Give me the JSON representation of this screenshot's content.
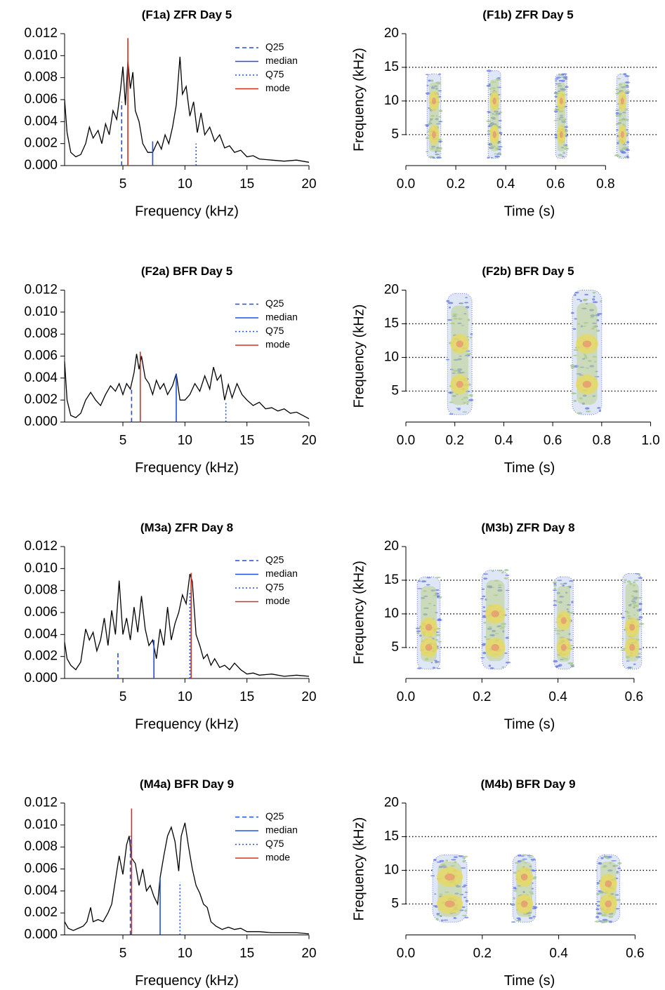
{
  "chart_data": [
    {
      "type": "line",
      "title": "(F1a) ZFR Day 5",
      "x_label": "Frequency (kHz)",
      "color": "#000000",
      "x": [
        0.3,
        0.5,
        0.8,
        1.2,
        1.6,
        2.0,
        2.3,
        2.6,
        3.0,
        3.3,
        3.6,
        3.9,
        4.2,
        4.5,
        4.8,
        5.0,
        5.2,
        5.4,
        5.6,
        5.8,
        6.0,
        6.3,
        6.6,
        7.0,
        7.4,
        7.8,
        8.1,
        8.4,
        8.7,
        9.0,
        9.3,
        9.6,
        9.8,
        10.1,
        10.4,
        10.7,
        11.0,
        11.3,
        11.6,
        12.0,
        12.4,
        12.8,
        13.2,
        13.6,
        14.0,
        14.5,
        15.0,
        15.5,
        16.0,
        17.0,
        18.0,
        19.0,
        20.0
      ],
      "values": [
        0.006,
        0.003,
        0.0012,
        0.0008,
        0.001,
        0.002,
        0.0035,
        0.0025,
        0.0032,
        0.002,
        0.0038,
        0.0028,
        0.005,
        0.0042,
        0.0068,
        0.009,
        0.0055,
        0.0095,
        0.007,
        0.0085,
        0.005,
        0.004,
        0.002,
        0.0012,
        0.0012,
        0.0022,
        0.0015,
        0.0028,
        0.002,
        0.0035,
        0.0055,
        0.0099,
        0.0065,
        0.0072,
        0.0045,
        0.0058,
        0.003,
        0.0048,
        0.0028,
        0.0035,
        0.0022,
        0.0028,
        0.0016,
        0.0018,
        0.0012,
        0.0014,
        0.0008,
        0.0009,
        0.0006,
        0.0005,
        0.0004,
        0.0005,
        0.0003
      ],
      "markers": [
        {
          "name": "Q25",
          "color": "#1f4fe0",
          "dash": "dashed",
          "x": 4.9,
          "y": 0.0058
        },
        {
          "name": "median",
          "color": "#1f4fe0",
          "dash": "solid",
          "x": 7.4,
          "y": 0.0022
        },
        {
          "name": "Q75",
          "color": "#1f4fe0",
          "dash": "dotted",
          "x": 10.9,
          "y": 0.002
        },
        {
          "name": "mode",
          "color": "#d03020",
          "dash": "solid",
          "x": 5.4,
          "y": 0.0116
        }
      ],
      "xlim": [
        0.3,
        20
      ],
      "xticks": [
        5,
        10,
        15,
        20
      ],
      "ylim": [
        0,
        0.012
      ],
      "yticks": [
        {
          "value": 0,
          "label": "0.000"
        },
        {
          "value": 0.002,
          "label": "0.002"
        },
        {
          "value": 0.004,
          "label": "0.004"
        },
        {
          "value": 0.006,
          "label": "0.006"
        },
        {
          "value": 0.008,
          "label": "0.008"
        },
        {
          "value": 0.01,
          "label": "0.010"
        },
        {
          "value": 0.012,
          "label": "0.012"
        }
      ]
    },
    {
      "type": "spectrogram",
      "title": "(F1b) ZFR Day 5",
      "x_label": "Time (s)",
      "y_label": "Frequency (kHz)",
      "grid": true,
      "syllables": [
        {
          "start": 0.085,
          "end": 0.14,
          "low": 1.5,
          "high": 14,
          "peaks": [
            5,
            10
          ]
        },
        {
          "start": 0.33,
          "end": 0.38,
          "low": 1.5,
          "high": 14.5,
          "peaks": [
            5,
            10
          ]
        },
        {
          "start": 0.6,
          "end": 0.645,
          "low": 1.5,
          "high": 14,
          "peaks": [
            5,
            10
          ]
        },
        {
          "start": 0.845,
          "end": 0.89,
          "low": 1.5,
          "high": 14,
          "peaks": [
            5,
            10
          ]
        }
      ],
      "xlim": [
        0,
        1.01
      ],
      "xticks": [
        {
          "value": 0,
          "label": "0.0"
        },
        0.2,
        0.4,
        0.6,
        0.8
      ],
      "ylim": [
        0.4,
        20
      ],
      "yticks": [
        5,
        10,
        15,
        20
      ]
    },
    {
      "type": "line",
      "title": "(F2a) BFR Day 5",
      "x_label": "Frequency (kHz)",
      "color": "#000000",
      "x": [
        0.3,
        0.5,
        0.8,
        1.2,
        1.6,
        2.0,
        2.4,
        2.8,
        3.2,
        3.6,
        4.0,
        4.4,
        4.7,
        5.0,
        5.3,
        5.6,
        5.9,
        6.1,
        6.3,
        6.5,
        6.8,
        7.1,
        7.4,
        7.7,
        8.0,
        8.3,
        8.6,
        9.0,
        9.3,
        9.6,
        10.0,
        10.4,
        10.8,
        11.2,
        11.6,
        12.0,
        12.3,
        12.6,
        12.9,
        13.2,
        13.5,
        13.8,
        14.2,
        14.6,
        15.0,
        15.5,
        16.0,
        16.5,
        17.0,
        17.5,
        18.0,
        18.5,
        19.0,
        19.5,
        20.0
      ],
      "values": [
        0.0055,
        0.002,
        0.0006,
        0.0004,
        0.0008,
        0.002,
        0.0027,
        0.002,
        0.0015,
        0.0025,
        0.0033,
        0.0028,
        0.0035,
        0.0025,
        0.0035,
        0.003,
        0.0045,
        0.0062,
        0.0048,
        0.006,
        0.004,
        0.0035,
        0.0025,
        0.0038,
        0.003,
        0.0035,
        0.0025,
        0.0033,
        0.0044,
        0.002,
        0.002,
        0.0025,
        0.0035,
        0.0028,
        0.0042,
        0.003,
        0.005,
        0.0038,
        0.0043,
        0.002,
        0.0034,
        0.0022,
        0.0035,
        0.0025,
        0.002,
        0.0015,
        0.0018,
        0.0012,
        0.0013,
        0.001,
        0.0012,
        0.0008,
        0.0009,
        0.0006,
        0.0003
      ],
      "markers": [
        {
          "name": "Q25",
          "color": "#1f4fe0",
          "dash": "dashed",
          "x": 5.7,
          "y": 0.003
        },
        {
          "name": "median",
          "color": "#1f4fe0",
          "dash": "solid",
          "x": 9.3,
          "y": 0.0044
        },
        {
          "name": "Q75",
          "color": "#1f4fe0",
          "dash": "dotted",
          "x": 13.3,
          "y": 0.0018
        },
        {
          "name": "mode",
          "color": "#d03020",
          "dash": "solid",
          "x": 6.4,
          "y": 0.0064
        }
      ],
      "xlim": [
        0.3,
        20
      ],
      "xticks": [
        5,
        10,
        15,
        20
      ],
      "ylim": [
        0,
        0.012
      ],
      "yticks": [
        {
          "value": 0,
          "label": "0.000"
        },
        {
          "value": 0.002,
          "label": "0.002"
        },
        {
          "value": 0.004,
          "label": "0.004"
        },
        {
          "value": 0.006,
          "label": "0.006"
        },
        {
          "value": 0.008,
          "label": "0.008"
        },
        {
          "value": 0.01,
          "label": "0.010"
        },
        {
          "value": 0.012,
          "label": "0.012"
        }
      ]
    },
    {
      "type": "spectrogram",
      "title": "(F2b) BFR Day 5",
      "x_label": "Time (s)",
      "y_label": "Frequency (kHz)",
      "grid": true,
      "syllables": [
        {
          "start": 0.17,
          "end": 0.27,
          "low": 1.5,
          "high": 19.5,
          "peaks": [
            6,
            12
          ]
        },
        {
          "start": 0.68,
          "end": 0.8,
          "low": 1.5,
          "high": 20,
          "peaks": [
            6,
            12
          ]
        }
      ],
      "xlim": [
        0,
        1.03
      ],
      "xticks": [
        {
          "value": 0,
          "label": "0.0"
        },
        0.2,
        0.4,
        0.6,
        0.8,
        {
          "value": 1,
          "label": "1.0"
        }
      ],
      "ylim": [
        0.4,
        20
      ],
      "yticks": [
        5,
        10,
        15,
        20
      ]
    },
    {
      "type": "line",
      "title": "(M3a) ZFR Day 8",
      "x_label": "Frequency (kHz)",
      "color": "#000000",
      "x": [
        0.3,
        0.5,
        0.8,
        1.2,
        1.6,
        2.0,
        2.3,
        2.6,
        2.9,
        3.2,
        3.5,
        3.8,
        4.1,
        4.4,
        4.7,
        5.0,
        5.3,
        5.6,
        5.9,
        6.2,
        6.5,
        6.8,
        7.1,
        7.4,
        7.7,
        8.0,
        8.3,
        8.6,
        8.9,
        9.2,
        9.5,
        9.8,
        10.1,
        10.4,
        10.6,
        10.9,
        11.2,
        11.5,
        11.8,
        12.1,
        12.4,
        12.8,
        13.2,
        13.6,
        14.0,
        14.5,
        15.0,
        15.5,
        16.0,
        17.0,
        18.0,
        19.0,
        20.0
      ],
      "values": [
        0.0033,
        0.0018,
        0.0012,
        0.0008,
        0.0015,
        0.0045,
        0.0035,
        0.0042,
        0.0025,
        0.0035,
        0.0055,
        0.003,
        0.0062,
        0.004,
        0.0089,
        0.004,
        0.0055,
        0.0035,
        0.0065,
        0.0042,
        0.0075,
        0.0045,
        0.003,
        0.0035,
        0.0018,
        0.0045,
        0.003,
        0.0065,
        0.0035,
        0.005,
        0.006,
        0.0076,
        0.0068,
        0.0095,
        0.0088,
        0.004,
        0.003,
        0.0018,
        0.0022,
        0.0012,
        0.0018,
        0.001,
        0.0012,
        0.0008,
        0.0014,
        0.0008,
        0.0004,
        0.0005,
        0.0003,
        0.0004,
        0.0002,
        0.0003,
        0.0002
      ],
      "markers": [
        {
          "name": "Q25",
          "color": "#1f4fe0",
          "dash": "dashed",
          "x": 4.6,
          "y": 0.0025
        },
        {
          "name": "median",
          "color": "#1f4fe0",
          "dash": "solid",
          "x": 7.5,
          "y": 0.0035
        },
        {
          "name": "Q75",
          "color": "#1f4fe0",
          "dash": "dotted",
          "x": 10.4,
          "y": 0.008
        },
        {
          "name": "mode",
          "color": "#d03020",
          "dash": "solid",
          "x": 10.5,
          "y": 0.0096
        }
      ],
      "xlim": [
        0.3,
        20
      ],
      "xticks": [
        5,
        10,
        15,
        20
      ],
      "ylim": [
        0,
        0.012
      ],
      "yticks": [
        {
          "value": 0,
          "label": "0.000"
        },
        {
          "value": 0.002,
          "label": "0.002"
        },
        {
          "value": 0.004,
          "label": "0.004"
        },
        {
          "value": 0.006,
          "label": "0.006"
        },
        {
          "value": 0.008,
          "label": "0.008"
        },
        {
          "value": 0.01,
          "label": "0.010"
        },
        {
          "value": 0.012,
          "label": "0.012"
        }
      ]
    },
    {
      "type": "spectrogram",
      "title": "(M3b) ZFR Day 8",
      "x_label": "Time (s)",
      "y_label": "Frequency (kHz)",
      "grid": true,
      "syllables": [
        {
          "start": 0.03,
          "end": 0.09,
          "low": 1.8,
          "high": 15.5,
          "peaks": [
            5,
            8
          ]
        },
        {
          "start": 0.2,
          "end": 0.27,
          "low": 1.8,
          "high": 16.5,
          "peaks": [
            5,
            10
          ]
        },
        {
          "start": 0.39,
          "end": 0.44,
          "low": 1.8,
          "high": 15.5,
          "peaks": [
            5,
            9
          ]
        },
        {
          "start": 0.57,
          "end": 0.62,
          "low": 1.8,
          "high": 16,
          "peaks": [
            5,
            8
          ]
        }
      ],
      "xlim": [
        0,
        0.663
      ],
      "xticks": [
        {
          "value": 0,
          "label": "0.0"
        },
        0.2,
        0.4,
        0.6
      ],
      "ylim": [
        0.4,
        20
      ],
      "yticks": [
        5,
        10,
        15,
        20
      ]
    },
    {
      "type": "line",
      "title": "(M4a) BFR Day 9",
      "x_label": "Frequency (kHz)",
      "color": "#000000",
      "x": [
        0.3,
        0.6,
        1.0,
        1.4,
        1.8,
        2.1,
        2.4,
        2.6,
        3.0,
        3.4,
        3.8,
        4.1,
        4.4,
        4.7,
        5.0,
        5.3,
        5.5,
        5.7,
        6.0,
        6.3,
        6.6,
        6.9,
        7.2,
        7.5,
        7.8,
        8.0,
        8.3,
        8.6,
        8.9,
        9.2,
        9.5,
        9.7,
        10.0,
        10.3,
        10.6,
        10.9,
        11.2,
        11.5,
        11.8,
        12.1,
        12.5,
        13.0,
        13.5,
        14.0,
        14.5,
        15.0,
        16.0,
        17.0,
        18.0,
        19.0,
        20.0
      ],
      "values": [
        0.0012,
        0.0006,
        0.0004,
        0.0006,
        0.0008,
        0.0012,
        0.0025,
        0.0012,
        0.0014,
        0.0012,
        0.002,
        0.0028,
        0.005,
        0.0072,
        0.0055,
        0.0082,
        0.009,
        0.007,
        0.0065,
        0.0045,
        0.006,
        0.004,
        0.0045,
        0.0035,
        0.0028,
        0.0052,
        0.0072,
        0.009,
        0.0098,
        0.0085,
        0.0058,
        0.009,
        0.0102,
        0.008,
        0.006,
        0.0045,
        0.0038,
        0.0028,
        0.0025,
        0.0012,
        0.0008,
        0.0005,
        0.0007,
        0.0005,
        0.0006,
        0.0003,
        0.0003,
        0.0002,
        0.0002,
        0.0002,
        0.0001
      ],
      "markers": [
        {
          "name": "Q25",
          "color": "#1f4fe0",
          "dash": "dashed",
          "x": 5.6,
          "y": 0.009
        },
        {
          "name": "median",
          "color": "#1f4fe0",
          "dash": "solid",
          "x": 8.0,
          "y": 0.0052
        },
        {
          "name": "Q75",
          "color": "#1f4fe0",
          "dash": "dotted",
          "x": 9.6,
          "y": 0.0048
        },
        {
          "name": "mode",
          "color": "#d03020",
          "dash": "solid",
          "x": 5.7,
          "y": 0.0115
        }
      ],
      "xlim": [
        0.3,
        20
      ],
      "xticks": [
        5,
        10,
        15,
        20
      ],
      "ylim": [
        0,
        0.012
      ],
      "yticks": [
        {
          "value": 0,
          "label": "0.000"
        },
        {
          "value": 0.002,
          "label": "0.002"
        },
        {
          "value": 0.004,
          "label": "0.004"
        },
        {
          "value": 0.006,
          "label": "0.006"
        },
        {
          "value": 0.008,
          "label": "0.008"
        },
        {
          "value": 0.01,
          "label": "0.010"
        },
        {
          "value": 0.012,
          "label": "0.012"
        }
      ]
    },
    {
      "type": "spectrogram",
      "title": "(M4b) BFR Day 9",
      "x_label": "Time (s)",
      "y_label": "Frequency (kHz)",
      "grid": true,
      "syllables": [
        {
          "start": 0.07,
          "end": 0.16,
          "low": 2.3,
          "high": 12.3,
          "peaks": [
            5,
            9
          ]
        },
        {
          "start": 0.28,
          "end": 0.34,
          "low": 2.3,
          "high": 12.3,
          "peaks": [
            5,
            9
          ]
        },
        {
          "start": 0.5,
          "end": 0.56,
          "low": 2.3,
          "high": 12.3,
          "peaks": [
            5,
            8
          ]
        }
      ],
      "xlim": [
        0,
        0.66
      ],
      "xticks": [
        {
          "value": 0,
          "label": "0.0"
        },
        0.2,
        0.4,
        0.6
      ],
      "ylim": [
        0.4,
        20
      ],
      "yticks": [
        5,
        10,
        15,
        20
      ]
    }
  ]
}
